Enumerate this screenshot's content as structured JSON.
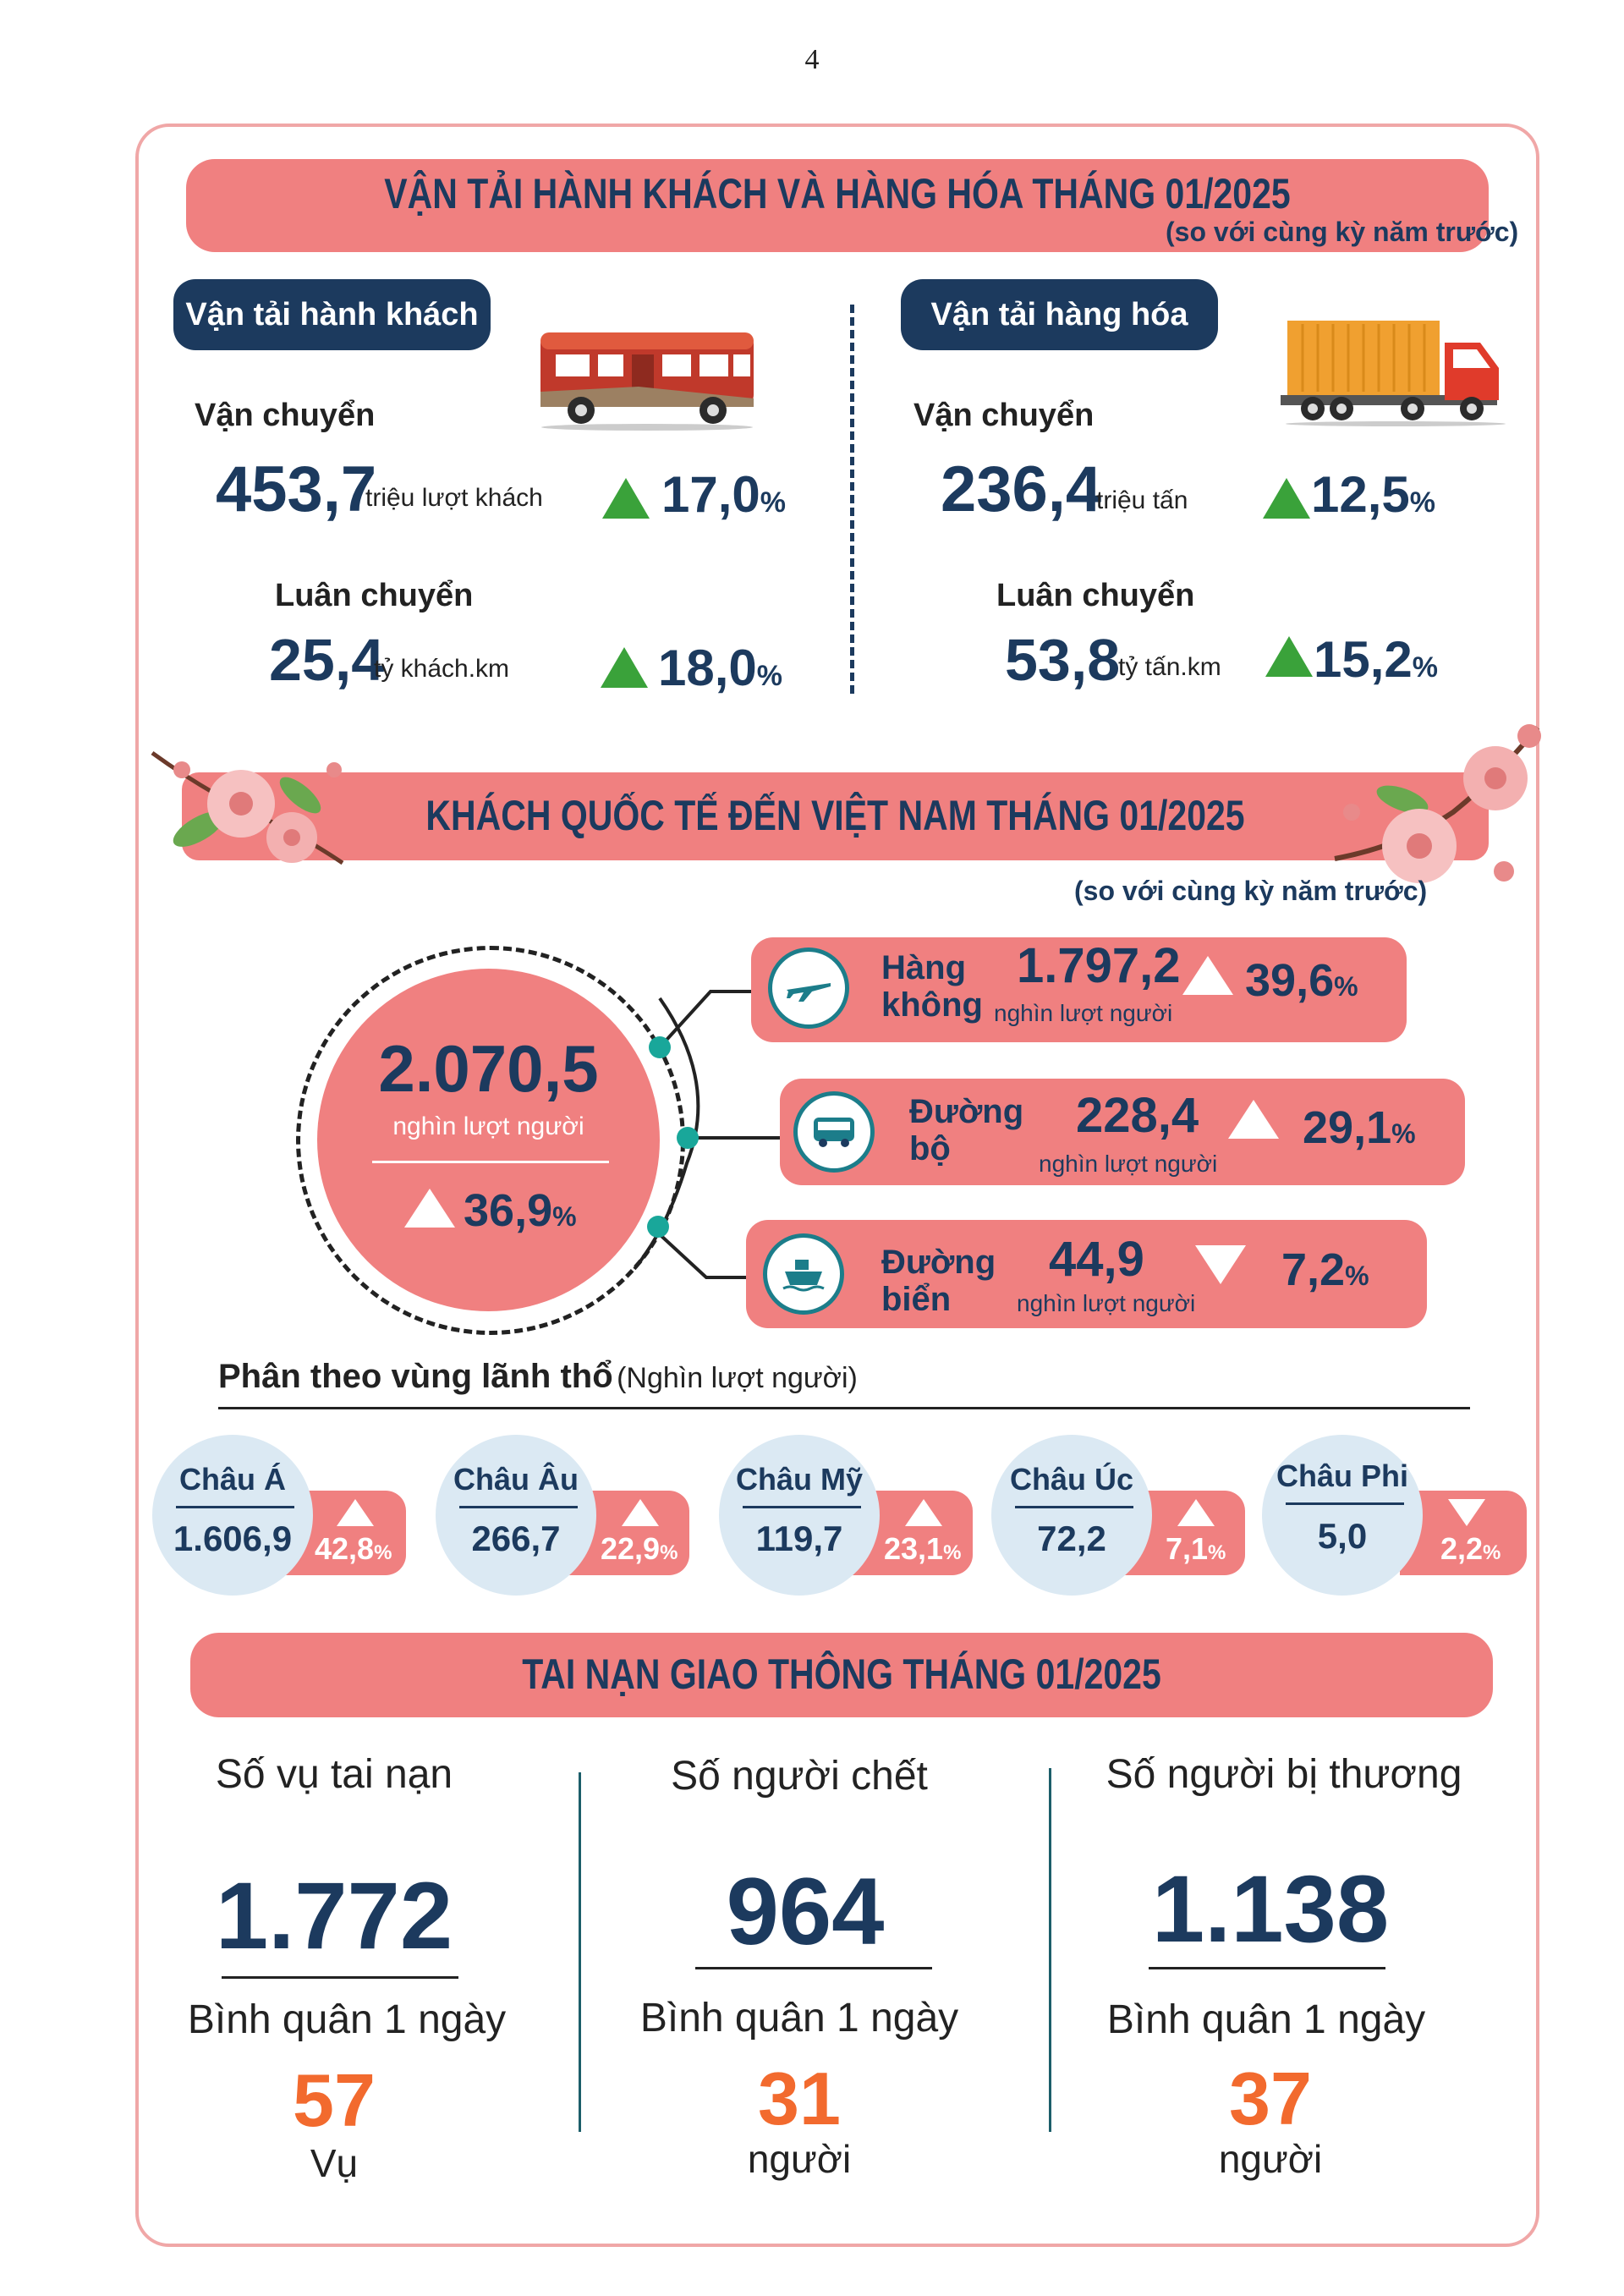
{
  "page_number": "4",
  "transport": {
    "title": "VẬN TẢI HÀNH KHÁCH VÀ HÀNG HÓA THÁNG 01/2025",
    "subtitle": "(so với cùng kỳ năm trước)",
    "passenger": {
      "label": "Vận tải hành khách",
      "carry_label": "Vận chuyển",
      "carry_value": "453,7",
      "carry_unit": "triệu lượt khách",
      "carry_pct": "17,0",
      "rotate_label": "Luân chuyển",
      "rotate_value": "25,4",
      "rotate_unit": "tỷ khách.km",
      "rotate_pct": "18,0"
    },
    "cargo": {
      "label": "Vận tải hàng hóa",
      "carry_label": "Vận chuyển",
      "carry_value": "236,4",
      "carry_unit": "triệu tấn",
      "carry_pct": "12,5",
      "rotate_label": "Luân chuyển",
      "rotate_value": "53,8",
      "rotate_unit": "tỷ tấn.km",
      "rotate_pct": "15,2"
    },
    "pct_sign": "%",
    "up_color": "#3aa23a"
  },
  "visitors": {
    "title": "KHÁCH QUỐC TẾ ĐẾN VIỆT NAM THÁNG 01/2025",
    "subtitle": "(so với cùng kỳ năm trước)",
    "total_value": "2.070,5",
    "total_unit": "nghìn lượt người",
    "total_pct": "36,9",
    "modes": [
      {
        "name_1": "Hàng",
        "name_2": "không",
        "value": "1.797,2",
        "unit": "nghìn lượt người",
        "pct": "39,6",
        "direction": "up",
        "icon": "airplane-icon"
      },
      {
        "name_1": "Đường",
        "name_2": "bộ",
        "value": "228,4",
        "unit": "nghìn lượt người",
        "pct": "29,1",
        "direction": "up",
        "icon": "bus-icon"
      },
      {
        "name_1": "Đường",
        "name_2": "biển",
        "value": "44,9",
        "unit": "nghìn lượt người",
        "pct": "7,2",
        "direction": "down",
        "icon": "ship-icon"
      }
    ],
    "region_heading": "Phân theo vùng lãnh thổ",
    "region_unit": "(Nghìn lượt người)",
    "regions": [
      {
        "name": "Châu Á",
        "value": "1.606,9",
        "pct": "42,8",
        "direction": "up"
      },
      {
        "name": "Châu Âu",
        "value": "266,7",
        "pct": "22,9",
        "direction": "up"
      },
      {
        "name": "Châu Mỹ",
        "value": "119,7",
        "pct": "23,1",
        "direction": "up"
      },
      {
        "name": "Châu Úc",
        "value": "72,2",
        "pct": "7,1",
        "direction": "up"
      },
      {
        "name": "Châu Phi",
        "value": "5,0",
        "pct": "2,2",
        "direction": "down"
      }
    ]
  },
  "accidents": {
    "title": "TAI NẠN GIAO THÔNG THÁNG 01/2025",
    "avg_label": "Bình quân 1 ngày",
    "items": [
      {
        "heading": "Số vụ tai nạn",
        "value": "1.772",
        "avg": "57",
        "unit": "Vụ"
      },
      {
        "heading": "Số người chết",
        "value": "964",
        "avg": "31",
        "unit": "người"
      },
      {
        "heading": "Số người bị thương",
        "value": "1.138",
        "avg": "37",
        "unit": "người"
      }
    ],
    "accent_color": "#f26a2e"
  }
}
